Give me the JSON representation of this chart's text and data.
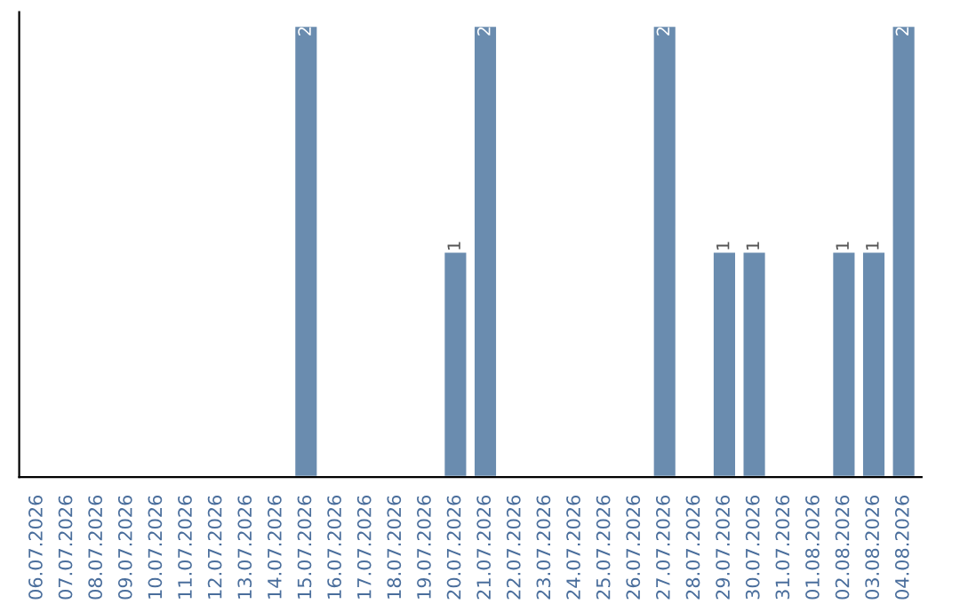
{
  "chart_data": {
    "type": "bar",
    "categories": [
      "06.07.2026",
      "07.07.2026",
      "08.07.2026",
      "09.07.2026",
      "10.07.2026",
      "11.07.2026",
      "12.07.2026",
      "13.07.2026",
      "14.07.2026",
      "15.07.2026",
      "16.07.2026",
      "17.07.2026",
      "18.07.2026",
      "19.07.2026",
      "20.07.2026",
      "21.07.2026",
      "22.07.2026",
      "23.07.2026",
      "24.07.2026",
      "25.07.2026",
      "26.07.2026",
      "27.07.2026",
      "28.07.2026",
      "29.07.2026",
      "30.07.2026",
      "31.07.2026",
      "01.08.2026",
      "02.08.2026",
      "03.08.2026",
      "04.08.2026"
    ],
    "values": [
      0,
      0,
      0,
      0,
      0,
      0,
      0,
      0,
      0,
      2,
      0,
      0,
      0,
      0,
      1,
      2,
      0,
      0,
      0,
      0,
      0,
      2,
      0,
      1,
      1,
      0,
      0,
      1,
      1,
      2
    ],
    "value_labels": [
      null,
      null,
      null,
      null,
      null,
      null,
      null,
      null,
      null,
      "2",
      null,
      null,
      null,
      null,
      "1",
      "2",
      null,
      null,
      null,
      null,
      null,
      "2",
      null,
      "1",
      "1",
      null,
      null,
      "1",
      "1",
      "2"
    ],
    "color": "#6a8caf",
    "grid": false,
    "legend": false
  }
}
